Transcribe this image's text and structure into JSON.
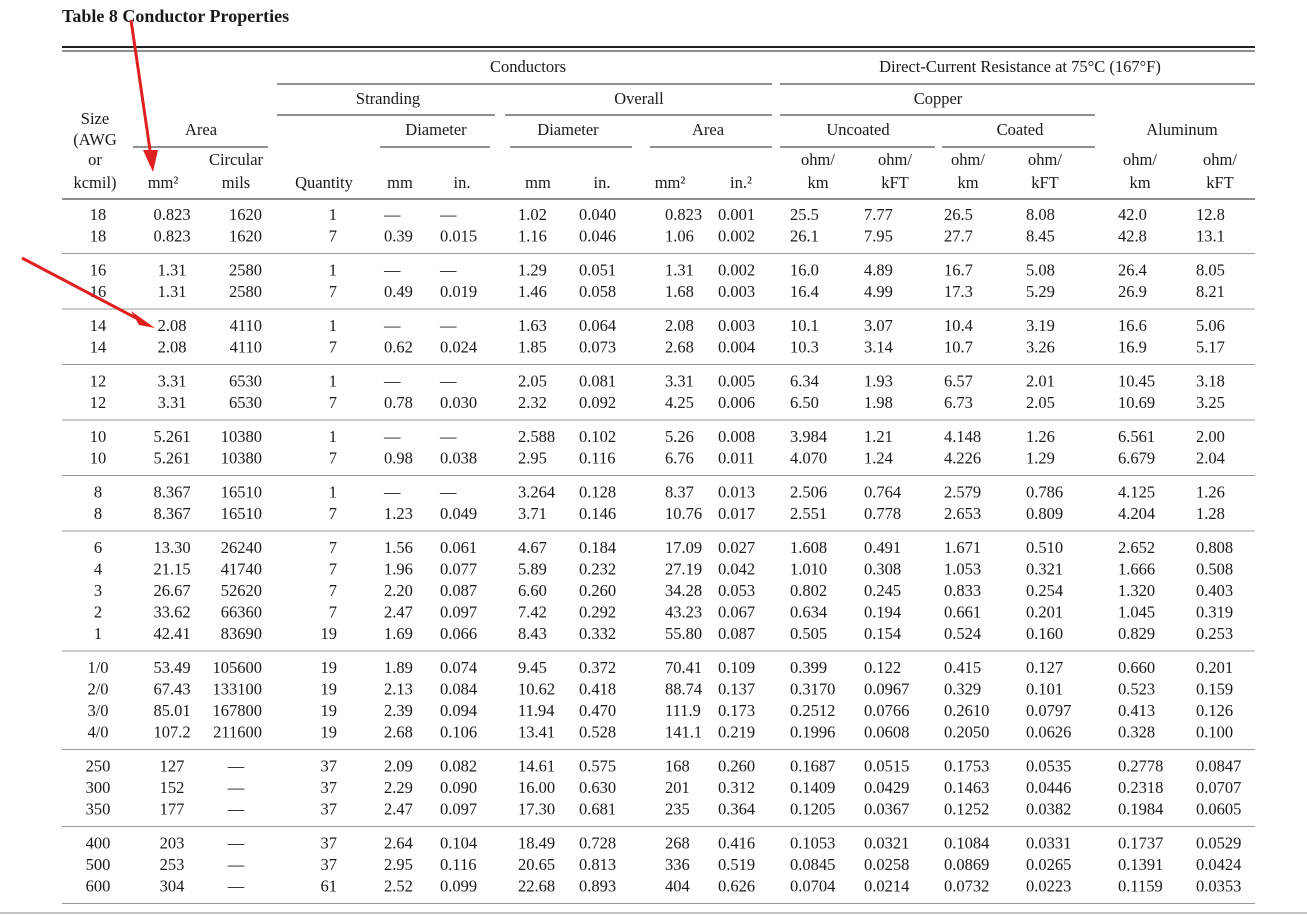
{
  "title": "Table 8 Conductor Properties",
  "header": {
    "conductors": "Conductors",
    "dc_resistance": "Direct-Current Resistance at 75°C (167°F)",
    "stranding": "Stranding",
    "overall": "Overall",
    "copper": "Copper",
    "size": [
      "Size",
      "(AWG",
      "or",
      "kcmil)"
    ],
    "area": "Area",
    "area_mm2": "mm²",
    "circular": [
      "Circular",
      "mils"
    ],
    "quantity": "Quantity",
    "strand_diameter": "Diameter",
    "strand_mm": "mm",
    "strand_in": "in.",
    "overall_diameter": "Diameter",
    "overall_diam_mm": "mm",
    "overall_diam_in": "in.",
    "overall_area": "Area",
    "overall_area_mm2": "mm²",
    "overall_area_in2": "in.²",
    "uncoated": "Uncoated",
    "coated": "Coated",
    "aluminum": "Aluminum",
    "units": [
      [
        "ohm/",
        "km"
      ],
      [
        "ohm/",
        "kFT"
      ],
      [
        "ohm/",
        "km"
      ],
      [
        "ohm/",
        "kFT"
      ],
      [
        "ohm/",
        "km"
      ],
      [
        "ohm/",
        "kFT"
      ]
    ]
  },
  "groups": [
    [
      [
        "18",
        "0.823",
        "1620",
        "1",
        "—",
        "—",
        "1.02",
        "0.040",
        "0.823",
        "0.001",
        "25.5",
        "7.77",
        "26.5",
        "8.08",
        "42.0",
        "12.8"
      ],
      [
        "18",
        "0.823",
        "1620",
        "7",
        "0.39",
        "0.015",
        "1.16",
        "0.046",
        "1.06",
        "0.002",
        "26.1",
        "7.95",
        "27.7",
        "8.45",
        "42.8",
        "13.1"
      ]
    ],
    [
      [
        "16",
        "1.31",
        "2580",
        "1",
        "—",
        "—",
        "1.29",
        "0.051",
        "1.31",
        "0.002",
        "16.0",
        "4.89",
        "16.7",
        "5.08",
        "26.4",
        "8.05"
      ],
      [
        "16",
        "1.31",
        "2580",
        "7",
        "0.49",
        "0.019",
        "1.46",
        "0.058",
        "1.68",
        "0.003",
        "16.4",
        "4.99",
        "17.3",
        "5.29",
        "26.9",
        "8.21"
      ]
    ],
    [
      [
        "14",
        "2.08",
        "4110",
        "1",
        "—",
        "—",
        "1.63",
        "0.064",
        "2.08",
        "0.003",
        "10.1",
        "3.07",
        "10.4",
        "3.19",
        "16.6",
        "5.06"
      ],
      [
        "14",
        "2.08",
        "4110",
        "7",
        "0.62",
        "0.024",
        "1.85",
        "0.073",
        "2.68",
        "0.004",
        "10.3",
        "3.14",
        "10.7",
        "3.26",
        "16.9",
        "5.17"
      ]
    ],
    [
      [
        "12",
        "3.31",
        "6530",
        "1",
        "—",
        "—",
        "2.05",
        "0.081",
        "3.31",
        "0.005",
        "6.34",
        "1.93",
        "6.57",
        "2.01",
        "10.45",
        "3.18"
      ],
      [
        "12",
        "3.31",
        "6530",
        "7",
        "0.78",
        "0.030",
        "2.32",
        "0.092",
        "4.25",
        "0.006",
        "6.50",
        "1.98",
        "6.73",
        "2.05",
        "10.69",
        "3.25"
      ]
    ],
    [
      [
        "10",
        "5.261",
        "10380",
        "1",
        "—",
        "—",
        "2.588",
        "0.102",
        "5.26",
        "0.008",
        "3.984",
        "1.21",
        "4.148",
        "1.26",
        "6.561",
        "2.00"
      ],
      [
        "10",
        "5.261",
        "10380",
        "7",
        "0.98",
        "0.038",
        "2.95",
        "0.116",
        "6.76",
        "0.011",
        "4.070",
        "1.24",
        "4.226",
        "1.29",
        "6.679",
        "2.04"
      ]
    ],
    [
      [
        "8",
        "8.367",
        "16510",
        "1",
        "—",
        "—",
        "3.264",
        "0.128",
        "8.37",
        "0.013",
        "2.506",
        "0.764",
        "2.579",
        "0.786",
        "4.125",
        "1.26"
      ],
      [
        "8",
        "8.367",
        "16510",
        "7",
        "1.23",
        "0.049",
        "3.71",
        "0.146",
        "10.76",
        "0.017",
        "2.551",
        "0.778",
        "2.653",
        "0.809",
        "4.204",
        "1.28"
      ]
    ],
    [
      [
        "6",
        "13.30",
        "26240",
        "7",
        "1.56",
        "0.061",
        "4.67",
        "0.184",
        "17.09",
        "0.027",
        "1.608",
        "0.491",
        "1.671",
        "0.510",
        "2.652",
        "0.808"
      ],
      [
        "4",
        "21.15",
        "41740",
        "7",
        "1.96",
        "0.077",
        "5.89",
        "0.232",
        "27.19",
        "0.042",
        "1.010",
        "0.308",
        "1.053",
        "0.321",
        "1.666",
        "0.508"
      ],
      [
        "3",
        "26.67",
        "52620",
        "7",
        "2.20",
        "0.087",
        "6.60",
        "0.260",
        "34.28",
        "0.053",
        "0.802",
        "0.245",
        "0.833",
        "0.254",
        "1.320",
        "0.403"
      ],
      [
        "2",
        "33.62",
        "66360",
        "7",
        "2.47",
        "0.097",
        "7.42",
        "0.292",
        "43.23",
        "0.067",
        "0.634",
        "0.194",
        "0.661",
        "0.201",
        "1.045",
        "0.319"
      ],
      [
        "1",
        "42.41",
        "83690",
        "19",
        "1.69",
        "0.066",
        "8.43",
        "0.332",
        "55.80",
        "0.087",
        "0.505",
        "0.154",
        "0.524",
        "0.160",
        "0.829",
        "0.253"
      ]
    ],
    [
      [
        "1/0",
        "53.49",
        "105600",
        "19",
        "1.89",
        "0.074",
        "9.45",
        "0.372",
        "70.41",
        "0.109",
        "0.399",
        "0.122",
        "0.415",
        "0.127",
        "0.660",
        "0.201"
      ],
      [
        "2/0",
        "67.43",
        "133100",
        "19",
        "2.13",
        "0.084",
        "10.62",
        "0.418",
        "88.74",
        "0.137",
        "0.3170",
        "0.0967",
        "0.329",
        "0.101",
        "0.523",
        "0.159"
      ],
      [
        "3/0",
        "85.01",
        "167800",
        "19",
        "2.39",
        "0.094",
        "11.94",
        "0.470",
        "111.9",
        "0.173",
        "0.2512",
        "0.0766",
        "0.2610",
        "0.0797",
        "0.413",
        "0.126"
      ],
      [
        "4/0",
        "107.2",
        "211600",
        "19",
        "2.68",
        "0.106",
        "13.41",
        "0.528",
        "141.1",
        "0.219",
        "0.1996",
        "0.0608",
        "0.2050",
        "0.0626",
        "0.328",
        "0.100"
      ]
    ],
    [
      [
        "250",
        "127",
        "—",
        "37",
        "2.09",
        "0.082",
        "14.61",
        "0.575",
        "168",
        "0.260",
        "0.1687",
        "0.0515",
        "0.1753",
        "0.0535",
        "0.2778",
        "0.0847"
      ],
      [
        "300",
        "152",
        "—",
        "37",
        "2.29",
        "0.090",
        "16.00",
        "0.630",
        "201",
        "0.312",
        "0.1409",
        "0.0429",
        "0.1463",
        "0.0446",
        "0.2318",
        "0.0707"
      ],
      [
        "350",
        "177",
        "—",
        "37",
        "2.47",
        "0.097",
        "17.30",
        "0.681",
        "235",
        "0.364",
        "0.1205",
        "0.0367",
        "0.1252",
        "0.0382",
        "0.1984",
        "0.0605"
      ]
    ],
    [
      [
        "400",
        "203",
        "—",
        "37",
        "2.64",
        "0.104",
        "18.49",
        "0.728",
        "268",
        "0.416",
        "0.1053",
        "0.0321",
        "0.1084",
        "0.0331",
        "0.1737",
        "0.0529"
      ],
      [
        "500",
        "253",
        "—",
        "37",
        "2.95",
        "0.116",
        "20.65",
        "0.813",
        "336",
        "0.519",
        "0.0845",
        "0.0258",
        "0.0869",
        "0.0265",
        "0.1391",
        "0.0424"
      ],
      [
        "600",
        "304",
        "—",
        "61",
        "2.52",
        "0.099",
        "22.68",
        "0.893",
        "404",
        "0.626",
        "0.0704",
        "0.0214",
        "0.0732",
        "0.0223",
        "0.1159",
        "0.0353"
      ]
    ]
  ]
}
